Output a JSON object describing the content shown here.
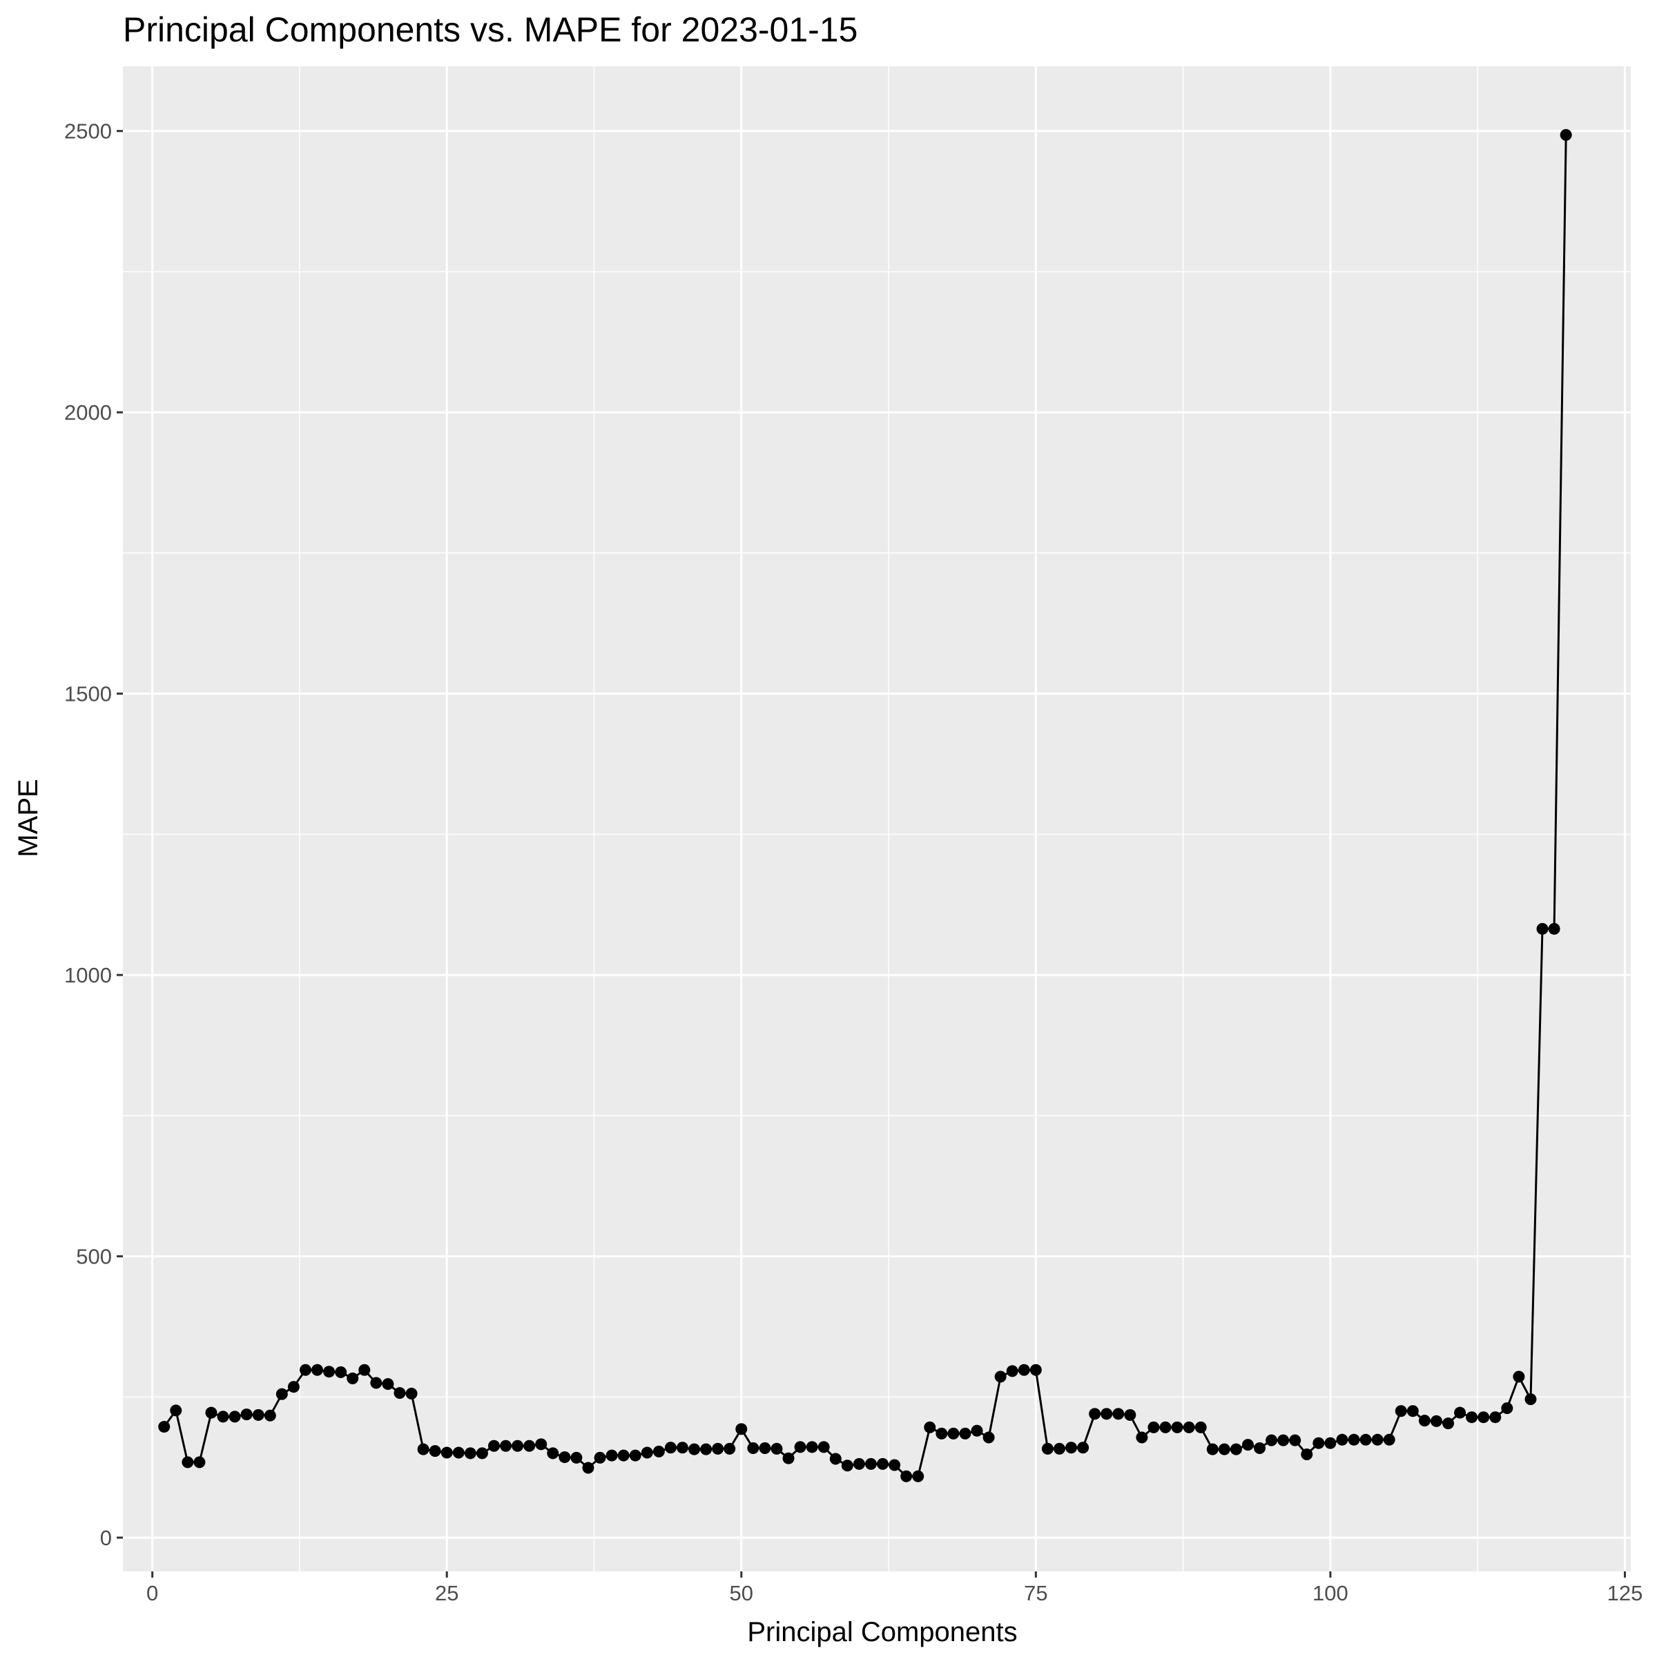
{
  "chart_data": {
    "type": "line",
    "title": "Principal Components vs. MAPE for 2023-01-15",
    "xlabel": "Principal Components",
    "ylabel": "MAPE",
    "xlim": [
      -2.5,
      125.5
    ],
    "ylim": [
      -60,
      2615
    ],
    "x_ticks": [
      0,
      25,
      50,
      75,
      100,
      125
    ],
    "x_tick_labels": [
      "0",
      "25",
      "50",
      "75",
      "100",
      "125"
    ],
    "x_minor_ticks": [
      12.5,
      37.5,
      62.5,
      87.5,
      112.5
    ],
    "y_ticks": [
      0,
      500,
      1000,
      1500,
      2000,
      2500
    ],
    "y_tick_labels": [
      "0",
      "500",
      "1000",
      "1500",
      "2000",
      "2500"
    ],
    "y_minor_ticks": [
      250,
      750,
      1250,
      1750,
      2250
    ],
    "grid": true,
    "markers": true,
    "colors": {
      "panel_background": "#ebebeb",
      "grid": "#ffffff",
      "series": "#000000",
      "tick_label": "#4d4d4d",
      "tick_mark": "#333333"
    },
    "series": [
      {
        "x": [
          1,
          2,
          3,
          4,
          5,
          6,
          7,
          8,
          9,
          10,
          11,
          12,
          13,
          14,
          15,
          16,
          17,
          18,
          19,
          20,
          21,
          22,
          23,
          24,
          25,
          26,
          27,
          28,
          29,
          30,
          31,
          32,
          33,
          34,
          35,
          36,
          37,
          38,
          39,
          40,
          41,
          42,
          43,
          44,
          45,
          46,
          47,
          48,
          49,
          50,
          51,
          52,
          53,
          54,
          55,
          56,
          57,
          58,
          59,
          60,
          61,
          62,
          63,
          64,
          65,
          66,
          67,
          68,
          69,
          70,
          71,
          72,
          73,
          74,
          75,
          76,
          77,
          78,
          79,
          80,
          81,
          82,
          83,
          84,
          85,
          86,
          87,
          88,
          89,
          90,
          91,
          92,
          93,
          94,
          95,
          96,
          97,
          98,
          99,
          100,
          101,
          102,
          103,
          104,
          105,
          106,
          107,
          108,
          109,
          110,
          111,
          112,
          113,
          114,
          115,
          116,
          117,
          118,
          119,
          120
        ],
        "values": [
          197,
          226,
          134,
          134,
          222,
          215,
          215,
          219,
          218,
          217,
          255,
          268,
          298,
          298,
          295,
          294,
          283,
          298,
          275,
          273,
          257,
          256,
          157,
          154,
          151,
          151,
          150,
          150,
          163,
          163,
          163,
          163,
          166,
          150,
          143,
          142,
          124,
          142,
          146,
          146,
          146,
          151,
          153,
          160,
          160,
          157,
          157,
          158,
          158,
          193,
          159,
          159,
          158,
          141,
          161,
          161,
          161,
          140,
          128,
          131,
          131,
          131,
          129,
          109,
          109,
          196,
          185,
          185,
          185,
          190,
          178,
          286,
          296,
          298,
          298,
          158,
          158,
          160,
          160,
          220,
          220,
          220,
          218,
          178,
          196,
          196,
          196,
          196,
          196,
          157,
          157,
          157,
          165,
          159,
          173,
          173,
          173,
          148,
          168,
          168,
          174,
          174,
          174,
          174,
          174,
          225,
          225,
          208,
          207,
          203,
          222,
          214,
          214,
          214,
          230,
          286,
          246,
          1082,
          1082,
          2493
        ]
      }
    ]
  }
}
